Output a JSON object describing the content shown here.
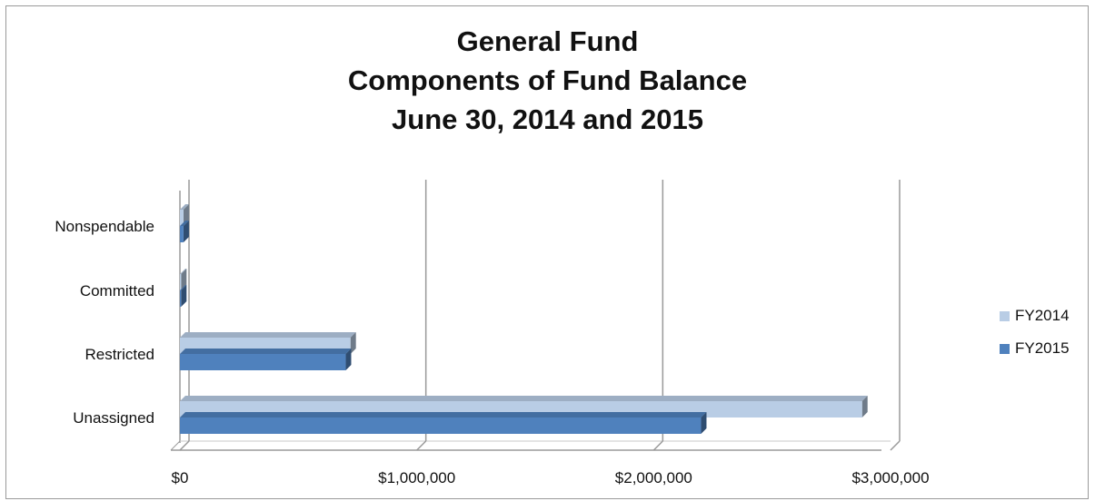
{
  "chart_data": {
    "type": "bar",
    "orientation": "horizontal",
    "title_lines": [
      "General Fund",
      "Components of Fund Balance",
      "June 30, 2014 and 2015"
    ],
    "categories": [
      "Nonspendable",
      "Committed",
      "Restricted",
      "Unassigned"
    ],
    "series": [
      {
        "name": "FY2014",
        "color": "#b9cde5",
        "values": [
          15000,
          5000,
          720000,
          2880000
        ]
      },
      {
        "name": "FY2015",
        "color": "#4f81bd",
        "values": [
          15000,
          5000,
          700000,
          2200000
        ]
      }
    ],
    "xlim": [
      0,
      3000000
    ],
    "x_ticks": [
      0,
      1000000,
      2000000,
      3000000
    ],
    "x_tick_labels": [
      "$0",
      "$1,000,000",
      "$2,000,000",
      "$3,000,000"
    ],
    "grid": true,
    "legend_position": "right"
  }
}
